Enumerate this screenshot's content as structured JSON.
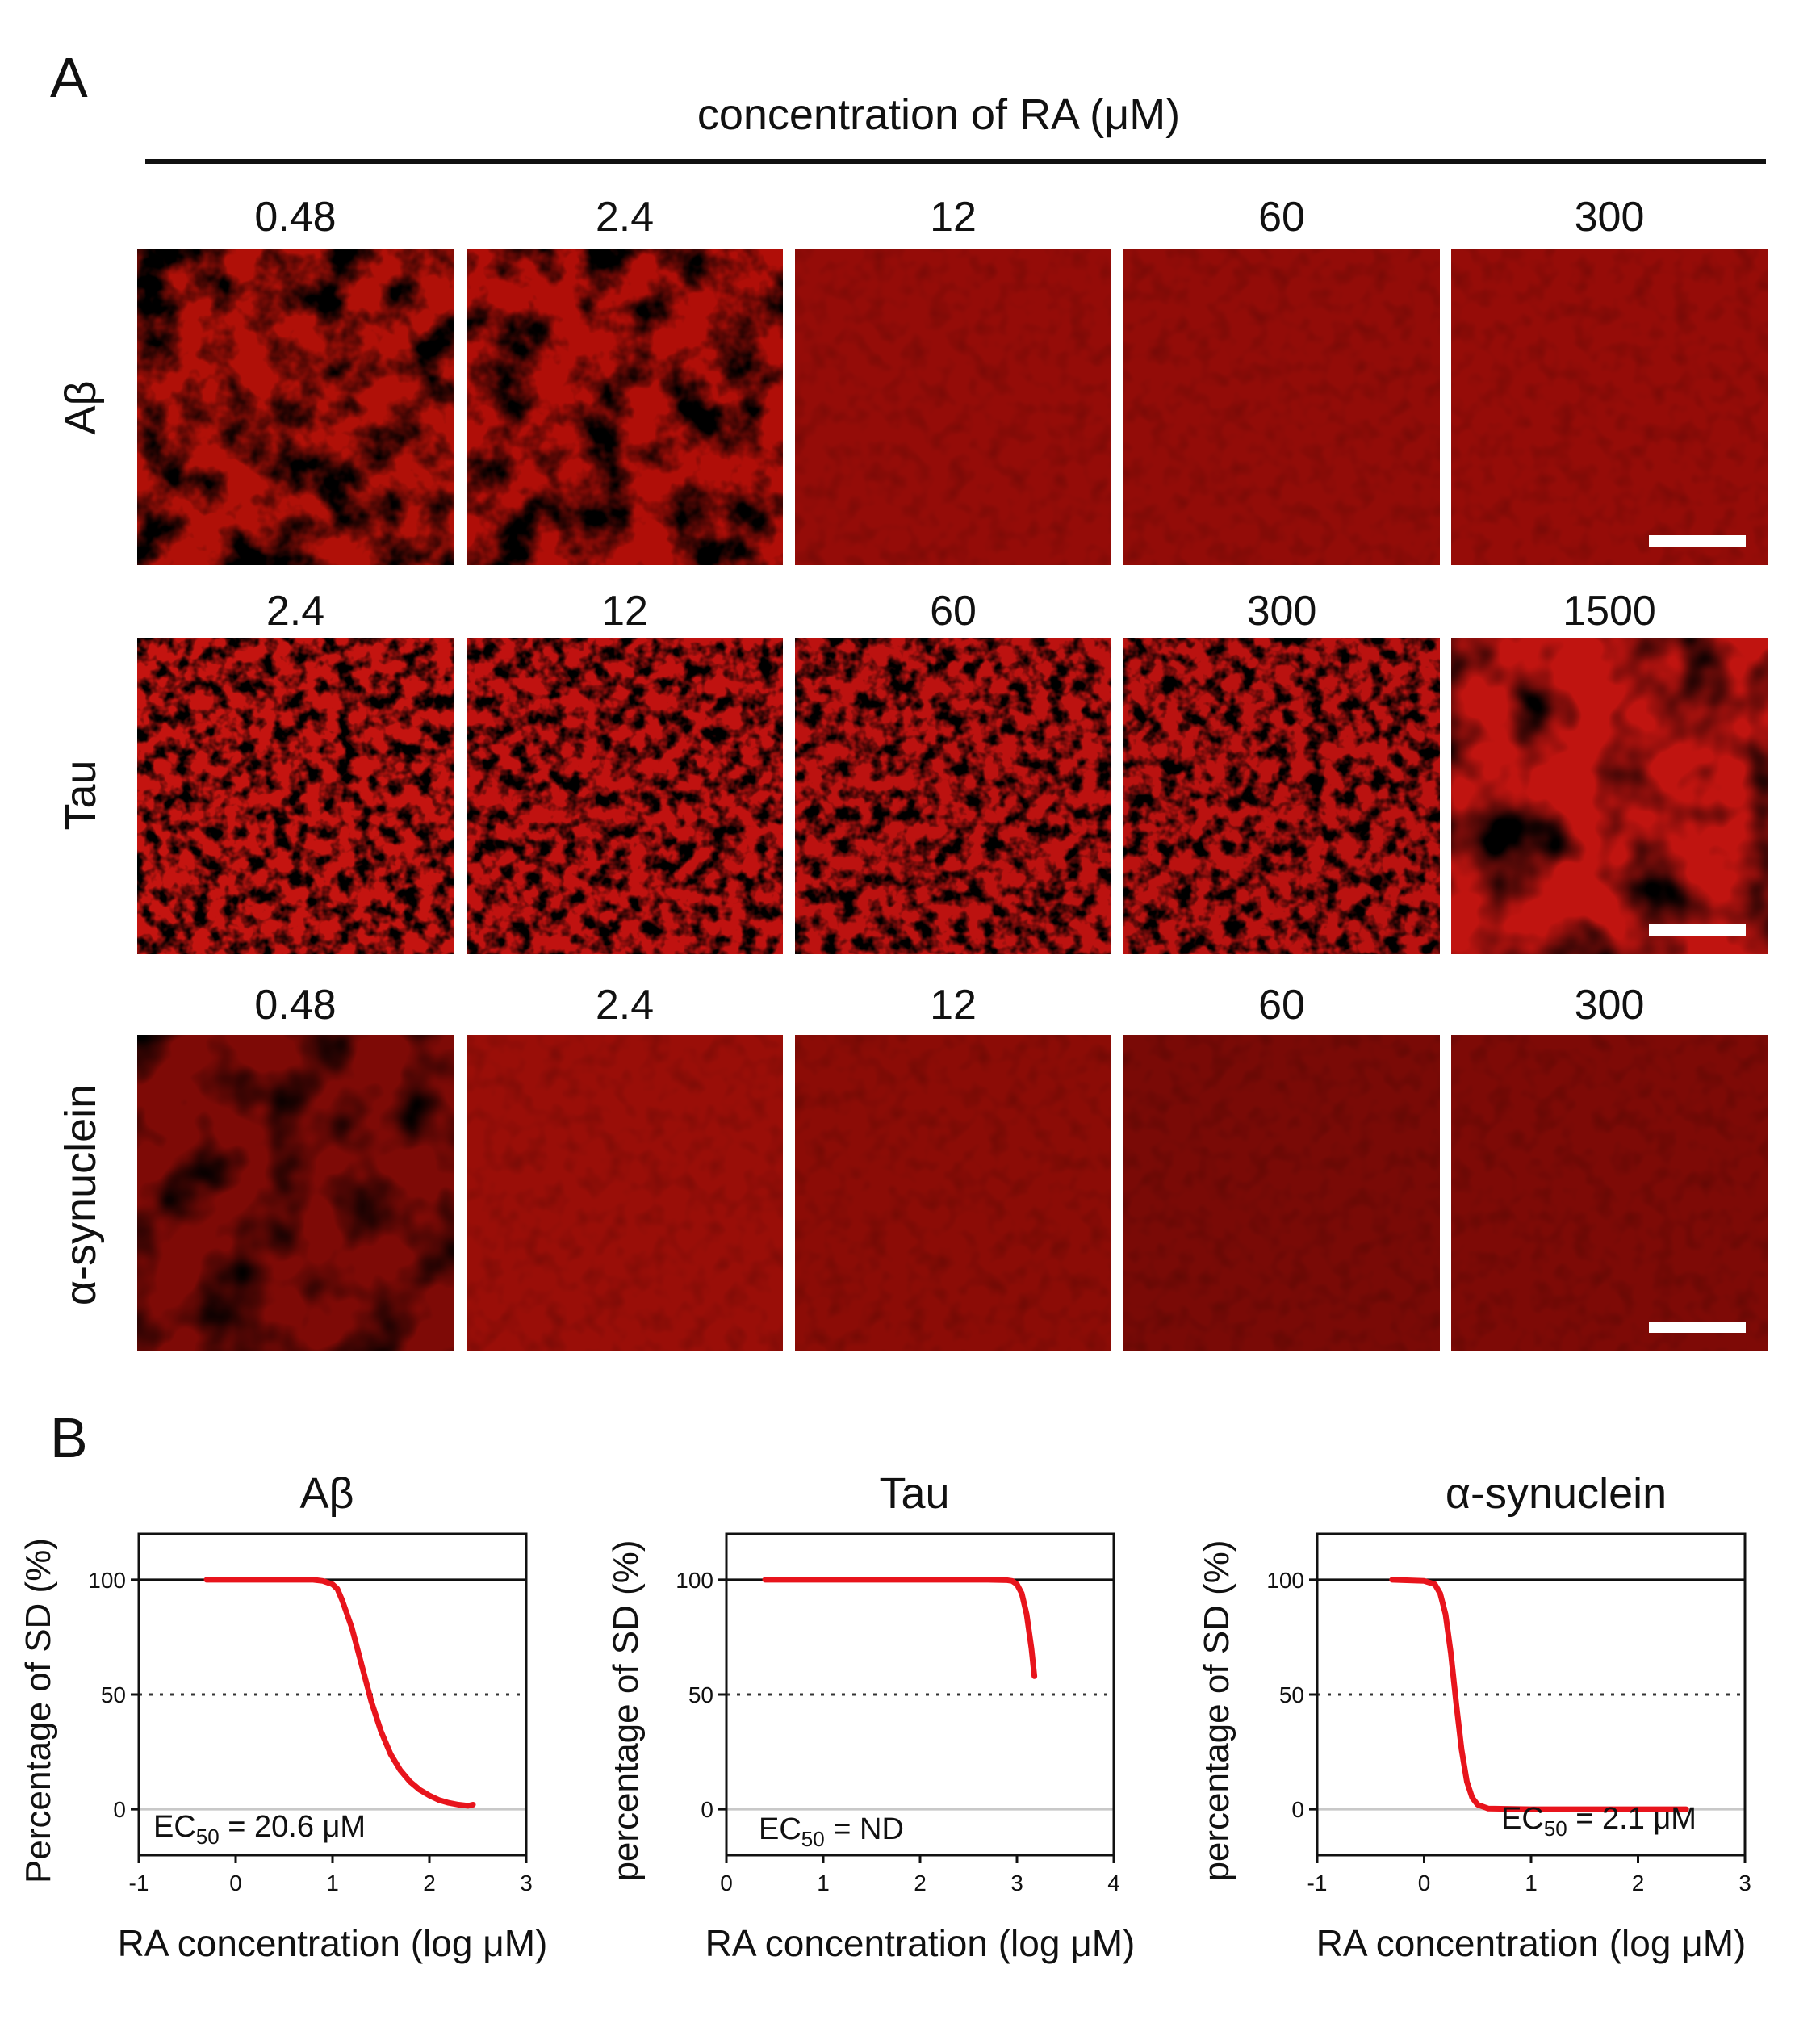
{
  "panel_a": {
    "label": "A",
    "header": "concentration of RA (μM)",
    "rows": [
      {
        "protein": "Aβ",
        "concentrations": [
          "0.48",
          "2.4",
          "12",
          "60",
          "300"
        ],
        "base_colors": [
          "#b01008",
          "#b00e08",
          "#950c08",
          "#930c08",
          "#960c08"
        ]
      },
      {
        "protein": "Tau",
        "concentrations": [
          "2.4",
          "12",
          "60",
          "300",
          "1500"
        ],
        "base_colors": [
          "#c41410",
          "#c01210",
          "#bc1210",
          "#ba1210",
          "#c01410"
        ]
      },
      {
        "protein": "α-synuclein",
        "concentrations": [
          "0.48",
          "2.4",
          "12",
          "60",
          "300"
        ],
        "base_colors": [
          "#7e0a06",
          "#9a0e08",
          "#8c0c06",
          "#7a0a06",
          "#7e0a06"
        ]
      }
    ],
    "scale_bar_color": "#ffffff"
  },
  "panel_b": {
    "label": "B",
    "curve_color": "#e8141c"
  },
  "chart_data": [
    {
      "type": "line",
      "title": "Aβ",
      "xlabel": "RA concentration (log μM)",
      "ylabel": "Percentage of SD (%)",
      "xlim": [
        -1,
        3
      ],
      "ylim": [
        -20,
        120
      ],
      "xticks": [
        -1,
        0,
        1,
        2,
        3
      ],
      "yticks": [
        0,
        50,
        100
      ],
      "reference_lines": [
        100,
        50,
        0
      ],
      "annotation": {
        "prefix": "EC",
        "sub": "50",
        "suffix": " = 20.6 μM"
      },
      "series": [
        {
          "name": "Aβ",
          "x": [
            -0.3,
            0.0,
            0.5,
            0.8,
            0.9,
            1.0,
            1.05,
            1.1,
            1.2,
            1.3,
            1.4,
            1.5,
            1.6,
            1.7,
            1.8,
            1.9,
            2.0,
            2.1,
            2.2,
            2.3,
            2.4,
            2.45
          ],
          "y": [
            100,
            100,
            100,
            100,
            99.5,
            98,
            96,
            91,
            79,
            63,
            47,
            34,
            24,
            17,
            12,
            8.5,
            6,
            4,
            2.8,
            2,
            1.5,
            2
          ]
        }
      ]
    },
    {
      "type": "line",
      "title": "Tau",
      "xlabel": "RA concentration (log μM)",
      "ylabel": "percentage of SD (%)",
      "xlim": [
        0,
        4
      ],
      "ylim": [
        -20,
        120
      ],
      "xticks": [
        0,
        1,
        2,
        3,
        4
      ],
      "yticks": [
        0,
        50,
        100
      ],
      "reference_lines": [
        100,
        50,
        0
      ],
      "annotation": {
        "prefix": "EC",
        "sub": "50",
        "suffix": " = ND"
      },
      "series": [
        {
          "name": "Tau",
          "x": [
            0.4,
            1.0,
            2.0,
            2.7,
            2.9,
            2.95,
            3.0,
            3.05,
            3.1,
            3.15,
            3.18
          ],
          "y": [
            100,
            100,
            100,
            100,
            99.8,
            99.5,
            98,
            94,
            85,
            70,
            58
          ]
        }
      ]
    },
    {
      "type": "line",
      "title": "α-synuclein",
      "xlabel": "RA concentration (log μM)",
      "ylabel": "percentage of SD (%)",
      "xlim": [
        -1,
        3
      ],
      "ylim": [
        -20,
        120
      ],
      "xticks": [
        -1,
        0,
        1,
        2,
        3
      ],
      "yticks": [
        0,
        50,
        100
      ],
      "reference_lines": [
        100,
        50,
        0
      ],
      "annotation": {
        "prefix": "EC",
        "sub": "50",
        "suffix": " = 2.1 μM"
      },
      "series": [
        {
          "name": "α-synuclein",
          "x": [
            -0.3,
            0.0,
            0.1,
            0.15,
            0.2,
            0.25,
            0.3,
            0.35,
            0.4,
            0.45,
            0.5,
            0.6,
            1.0,
            2.0,
            2.45
          ],
          "y": [
            100,
            99.5,
            98,
            94,
            85,
            68,
            46,
            26,
            12,
            5,
            2,
            0.3,
            0,
            0,
            0
          ]
        }
      ]
    }
  ]
}
